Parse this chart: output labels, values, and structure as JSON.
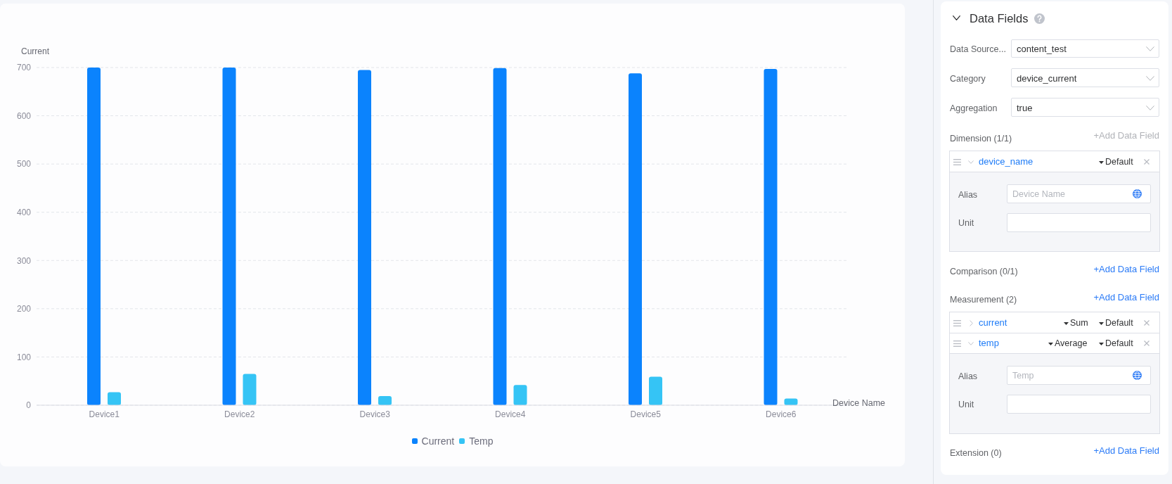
{
  "chart_data": [
    {
      "type": "bar",
      "categories": [
        "Device1",
        "Device2",
        "Device3",
        "Device4",
        "Device5",
        "Device6"
      ],
      "series": [
        {
          "name": "Current",
          "color": "#0b83fd",
          "values": [
            700,
            700,
            695,
            699,
            688,
            697
          ]
        },
        {
          "name": "Temp",
          "color": "#35c4f5",
          "values": [
            27,
            65,
            19,
            42,
            59,
            14
          ]
        }
      ],
      "ylabel": "Current",
      "xlabel": "Device Name",
      "ylim": [
        0,
        700
      ],
      "yticks": [
        0,
        100,
        200,
        300,
        400,
        500,
        600,
        700
      ],
      "grid": "y",
      "legend": "bottom"
    },
    {
      "type": "other",
      "title": "Data Fields",
      "annotations": [
        "Data Source...",
        "content_test",
        "Category",
        "device_current",
        "Aggregation",
        "true",
        "Dimension (1/1)",
        "+Add Data Field",
        "device_name",
        "Default",
        "Alias",
        "Device Name",
        "Unit",
        "Comparison (0/1)",
        "+Add Data Field",
        "Measurement (2)",
        "+Add Data Field",
        "current",
        "Sum",
        "Default",
        "temp",
        "Average",
        "Default",
        "Alias",
        "Temp",
        "Unit",
        "Extension (0)",
        "+Add Data Field"
      ]
    }
  ]
}
